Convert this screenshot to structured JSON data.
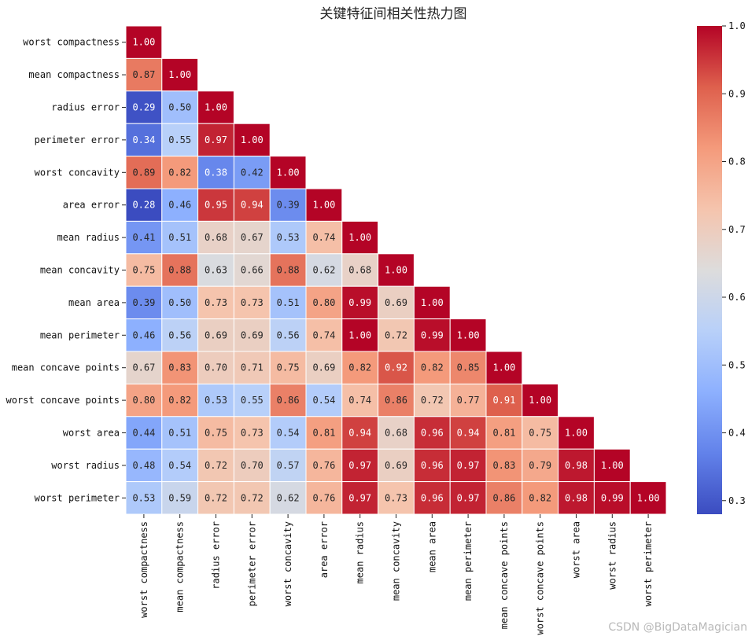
{
  "chart_data": {
    "type": "heatmap",
    "title": "关键特征间相关性热力图",
    "colormap": "coolwarm",
    "vmin": 0.28,
    "vmax": 1.0,
    "mask": "upper-triangle",
    "labels": [
      "worst compactness",
      "mean compactness",
      "radius error",
      "perimeter error",
      "worst concavity",
      "area error",
      "mean radius",
      "mean concavity",
      "mean area",
      "mean perimeter",
      "mean concave points",
      "worst concave points",
      "worst area",
      "worst radius",
      "worst perimeter"
    ],
    "values": [
      [
        1.0
      ],
      [
        0.87,
        1.0
      ],
      [
        0.29,
        0.5,
        1.0
      ],
      [
        0.34,
        0.55,
        0.97,
        1.0
      ],
      [
        0.89,
        0.82,
        0.38,
        0.42,
        1.0
      ],
      [
        0.28,
        0.46,
        0.95,
        0.94,
        0.39,
        1.0
      ],
      [
        0.41,
        0.51,
        0.68,
        0.67,
        0.53,
        0.74,
        1.0
      ],
      [
        0.75,
        0.88,
        0.63,
        0.66,
        0.88,
        0.62,
        0.68,
        1.0
      ],
      [
        0.39,
        0.5,
        0.73,
        0.73,
        0.51,
        0.8,
        0.99,
        0.69,
        1.0
      ],
      [
        0.46,
        0.56,
        0.69,
        0.69,
        0.56,
        0.74,
        1.0,
        0.72,
        0.99,
        1.0
      ],
      [
        0.67,
        0.83,
        0.7,
        0.71,
        0.75,
        0.69,
        0.82,
        0.92,
        0.82,
        0.85,
        1.0
      ],
      [
        0.8,
        0.82,
        0.53,
        0.55,
        0.86,
        0.54,
        0.74,
        0.86,
        0.72,
        0.77,
        0.91,
        1.0
      ],
      [
        0.44,
        0.51,
        0.75,
        0.73,
        0.54,
        0.81,
        0.94,
        0.68,
        0.96,
        0.94,
        0.81,
        0.75,
        1.0
      ],
      [
        0.48,
        0.54,
        0.72,
        0.7,
        0.57,
        0.76,
        0.97,
        0.69,
        0.96,
        0.97,
        0.83,
        0.79,
        0.98,
        1.0
      ],
      [
        0.53,
        0.59,
        0.72,
        0.72,
        0.62,
        0.76,
        0.97,
        0.73,
        0.96,
        0.97,
        0.86,
        0.82,
        0.98,
        0.99,
        1.0
      ]
    ],
    "colorbar": {
      "ticks": [
        0.3,
        0.4,
        0.5,
        0.6,
        0.7,
        0.8,
        0.9,
        1.0
      ],
      "tick_labels": [
        "0.3",
        "0.4",
        "0.5",
        "0.6",
        "0.7",
        "0.8",
        "0.9",
        "1.0"
      ]
    }
  },
  "watermark": "CSDN @BigDataMagician"
}
